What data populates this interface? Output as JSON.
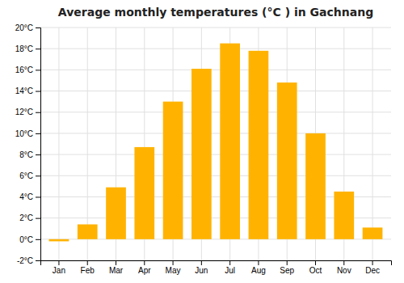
{
  "chart_data": {
    "type": "bar",
    "title": "Average monthly temperatures (°C ) in Gachnang",
    "categories": [
      "Jan",
      "Feb",
      "Mar",
      "Apr",
      "May",
      "Jun",
      "Jul",
      "Aug",
      "Sep",
      "Oct",
      "Nov",
      "Dec"
    ],
    "values": [
      -0.2,
      1.4,
      4.9,
      8.7,
      13.0,
      16.1,
      18.5,
      17.8,
      14.8,
      10.0,
      4.5,
      1.1
    ],
    "color": "#FFB300",
    "ylim": [
      -2,
      20
    ],
    "yticks": [
      {
        "value": -2,
        "label": "-2°C"
      },
      {
        "value": 0,
        "label": "0°C"
      },
      {
        "value": 2,
        "label": "2°C"
      },
      {
        "value": 4,
        "label": "4°C"
      },
      {
        "value": 6,
        "label": "6°C"
      },
      {
        "value": 8,
        "label": "8°C"
      },
      {
        "value": 10,
        "label": "10°C"
      },
      {
        "value": 12,
        "label": "12°C"
      },
      {
        "value": 14,
        "label": "14°C"
      },
      {
        "value": 16,
        "label": "16°C"
      },
      {
        "value": 18,
        "label": "18°C"
      },
      {
        "value": 20,
        "label": "20°C"
      }
    ],
    "grid": true
  }
}
